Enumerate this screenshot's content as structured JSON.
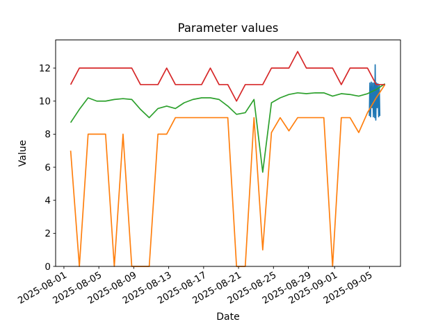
{
  "window": {
    "title": "Parameter values"
  },
  "chart_data": {
    "type": "line",
    "title": "Parameter values",
    "xlabel": "Date",
    "ylabel": "Value",
    "grid": false,
    "legend": null,
    "start_date": "2025-08-01",
    "sample_time_offset_days": 0.77,
    "xlim_days": [
      -0.95,
      38.55
    ],
    "ylim": [
      0,
      13.7
    ],
    "x_tick_labels": [
      "2025-08-01",
      "2025-08-05",
      "2025-08-09",
      "2025-08-13",
      "2025-08-17",
      "2025-08-21",
      "2025-08-25",
      "2025-08-29",
      "2025-09-01",
      "2025-09-05"
    ],
    "y_ticks": [
      0,
      2,
      4,
      6,
      8,
      10,
      12
    ],
    "dates": [
      "2025-08-01",
      "2025-08-02",
      "2025-08-03",
      "2025-08-04",
      "2025-08-05",
      "2025-08-06",
      "2025-08-07",
      "2025-08-08",
      "2025-08-09",
      "2025-08-10",
      "2025-08-11",
      "2025-08-12",
      "2025-08-13",
      "2025-08-14",
      "2025-08-15",
      "2025-08-16",
      "2025-08-17",
      "2025-08-18",
      "2025-08-19",
      "2025-08-20",
      "2025-08-21",
      "2025-08-22",
      "2025-08-23",
      "2025-08-24",
      "2025-08-25",
      "2025-08-26",
      "2025-08-27",
      "2025-08-28",
      "2025-08-29",
      "2025-08-30",
      "2025-08-31",
      "2025-09-01",
      "2025-09-02",
      "2025-09-03",
      "2025-09-04",
      "2025-09-05",
      "2025-09-06"
    ],
    "series": [
      {
        "name": "blue",
        "color": "#1f77b4",
        "note": "dense high-frequency cluster at end of range, oscillating ~9-11 with one spike to ~12.2",
        "day_offsets": [
          34.98,
          35.04,
          35.12,
          35.2,
          35.28,
          35.36,
          35.44,
          35.52,
          35.6,
          35.65,
          35.72,
          35.8,
          35.88,
          35.96,
          36.05,
          36.12,
          36.18
        ],
        "values": [
          9.1,
          11.1,
          9.05,
          11.15,
          9.6,
          11.1,
          9.05,
          11.1,
          9.0,
          12.2,
          8.85,
          11.1,
          9.6,
          11.05,
          9.05,
          11.0,
          9.1
        ]
      },
      {
        "name": "orange",
        "color": "#ff7f0e",
        "values": [
          7,
          0,
          8,
          8,
          8,
          0,
          8,
          0,
          0,
          0,
          8,
          8,
          9,
          9,
          9,
          9,
          9,
          9,
          9,
          0,
          0,
          9,
          1,
          8.1,
          9,
          8.2,
          9,
          9,
          9,
          9,
          0,
          9,
          9,
          8.1,
          9.3,
          10.2,
          11
        ]
      },
      {
        "name": "green",
        "color": "#2ca02c",
        "values": [
          8.7,
          9.5,
          10.2,
          10.0,
          10.0,
          10.1,
          10.15,
          10.1,
          9.5,
          9.0,
          9.55,
          9.7,
          9.55,
          9.9,
          10.1,
          10.2,
          10.2,
          10.1,
          9.7,
          9.2,
          9.3,
          10.1,
          5.7,
          9.9,
          10.2,
          10.4,
          10.5,
          10.45,
          10.5,
          10.5,
          10.3,
          10.45,
          10.4,
          10.3,
          10.45,
          10.7,
          11.05
        ]
      },
      {
        "name": "red",
        "color": "#d62728",
        "values": [
          11,
          12,
          12,
          12,
          12,
          12,
          12,
          12,
          11,
          11,
          11,
          12,
          11,
          11,
          11,
          11,
          12,
          11,
          11,
          10,
          11,
          11,
          11,
          12,
          12,
          12,
          13,
          12,
          12,
          12,
          12,
          11,
          12,
          12,
          12,
          11,
          11
        ]
      }
    ]
  }
}
